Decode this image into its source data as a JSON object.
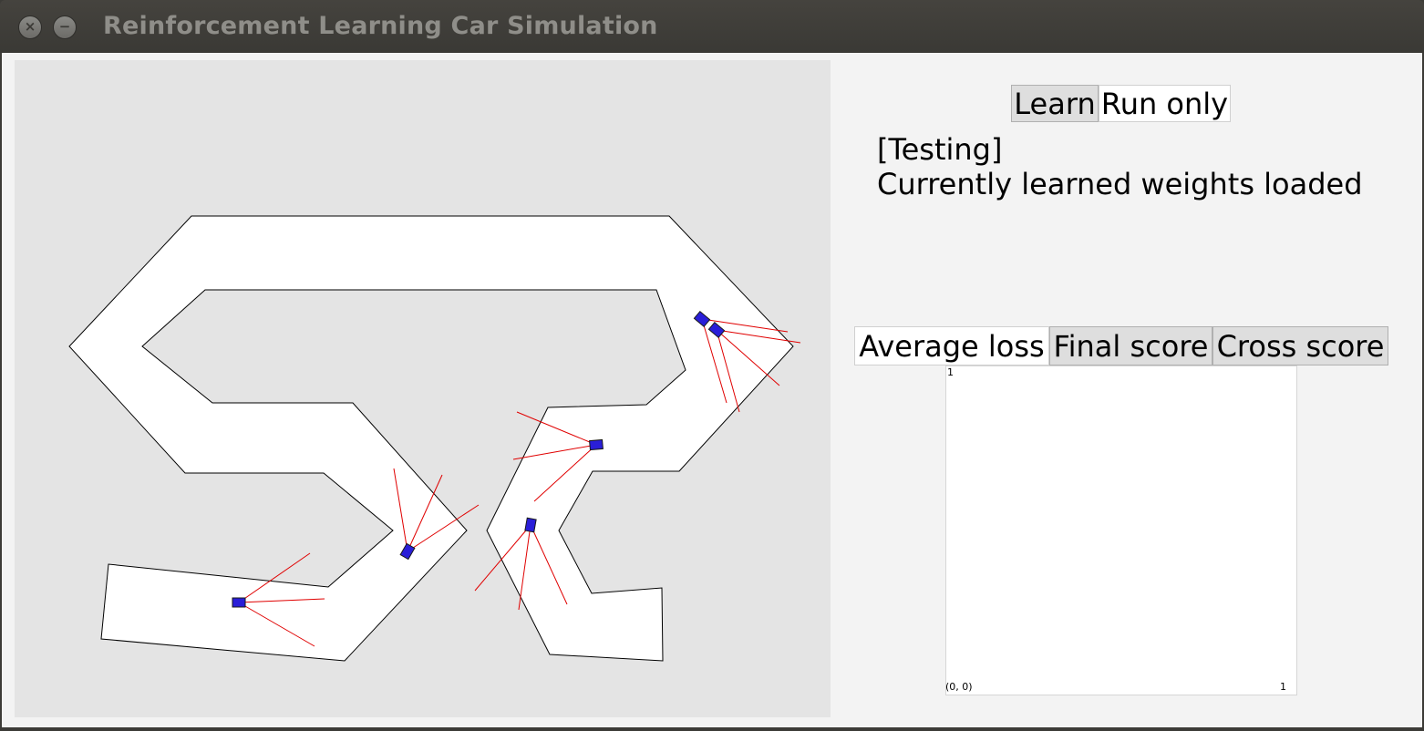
{
  "window": {
    "title": "Reinforcement Learning Car Simulation",
    "close_glyph": "×",
    "minimize_glyph": "−"
  },
  "mode_buttons": [
    {
      "label": "Learn",
      "active": false
    },
    {
      "label": "Run only",
      "active": true
    }
  ],
  "status": {
    "line1": "[Testing]",
    "line2": "Currently learned weights loaded"
  },
  "plot_tabs": [
    {
      "label": "Average loss",
      "active": true
    },
    {
      "label": "Final score",
      "active": false
    },
    {
      "label": "Cross score",
      "active": false
    }
  ],
  "plot": {
    "y_max_label": "1",
    "origin_label": "(0, 0)",
    "x_max_label": "1"
  },
  "colors": {
    "canvas_bg": "#e4e4e4",
    "track_fill": "#ffffff",
    "track_border": "#000000",
    "car_fill": "#2a1ed8",
    "sensor_ray": "#e00000"
  }
}
